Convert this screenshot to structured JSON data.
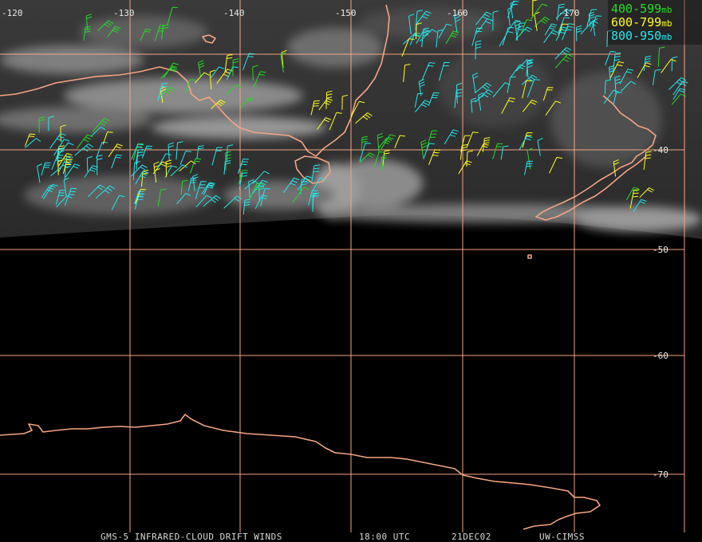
{
  "map": {
    "longitude_labels": [
      "-120",
      "-130",
      "-140",
      "-150",
      "-160",
      "-170"
    ],
    "latitude_labels": [
      "-40",
      "-50",
      "-60",
      "-70"
    ],
    "coast_color": "#f4a582",
    "grid_color": "#f4a582"
  },
  "legend": {
    "items": [
      {
        "range": "400-599",
        "unit": "mb",
        "color": "#22dd22"
      },
      {
        "range": "600-799",
        "unit": "mb",
        "color": "#ffff22"
      },
      {
        "range": "800-950",
        "unit": "mb",
        "color": "#22e8ee"
      }
    ]
  },
  "footer": {
    "product": "GMS-5 INFRARED-CLOUD DRIFT WINDS",
    "time": "18:00 UTC",
    "date": "21DEC02",
    "source": "UW-CIMSS"
  }
}
